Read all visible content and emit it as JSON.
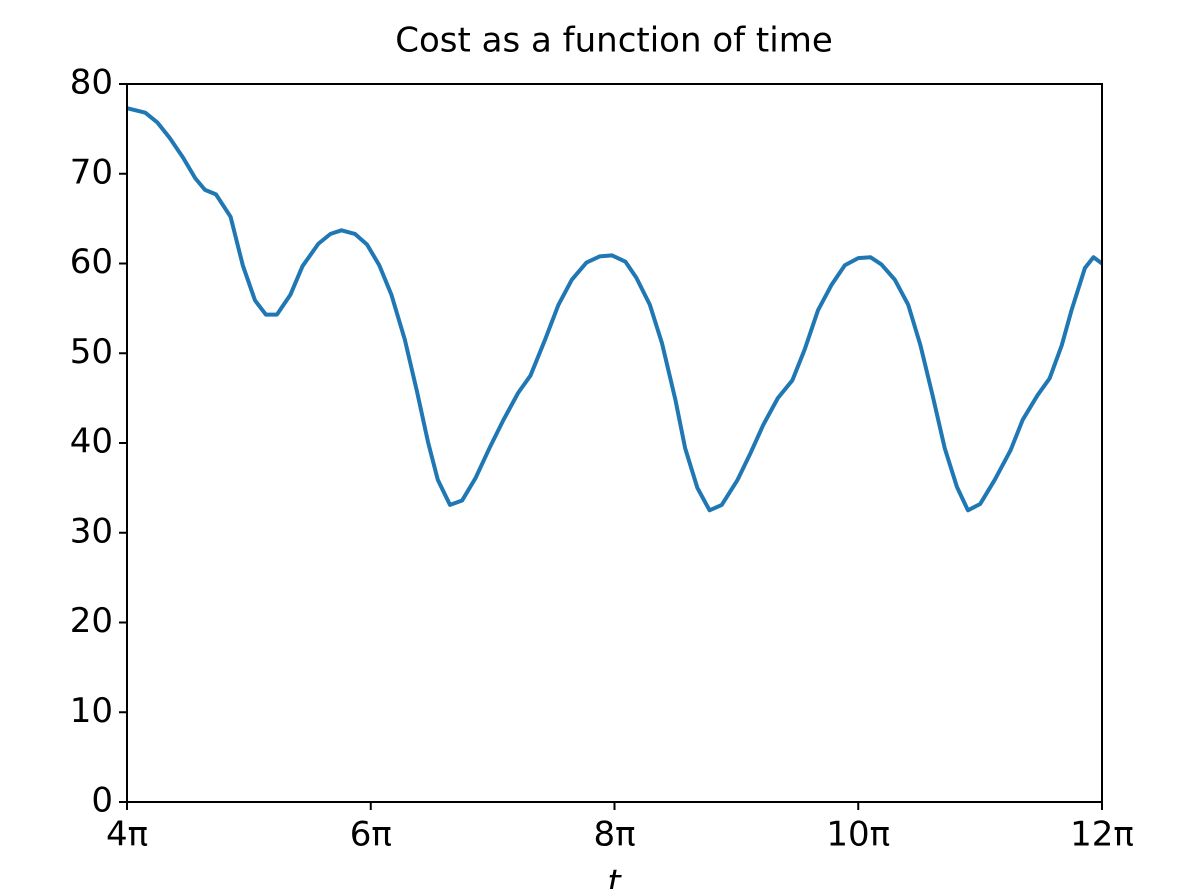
{
  "chart_data": {
    "type": "line",
    "title": "Cost as a function of time",
    "xlabel": "t",
    "x": [
      4.0,
      4.15,
      4.25,
      4.35,
      4.46,
      4.56,
      4.64,
      4.73,
      4.85,
      4.95,
      5.05,
      5.14,
      5.23,
      5.34,
      5.44,
      5.57,
      5.67,
      5.76,
      5.87,
      5.97,
      6.07,
      6.17,
      6.28,
      6.38,
      6.47,
      6.55,
      6.65,
      6.75,
      6.86,
      6.98,
      7.09,
      7.21,
      7.31,
      7.43,
      7.54,
      7.65,
      7.77,
      7.88,
      7.98,
      8.09,
      8.18,
      8.29,
      8.39,
      8.5,
      8.58,
      8.68,
      8.78,
      8.88,
      9.01,
      9.11,
      9.22,
      9.34,
      9.46,
      9.56,
      9.67,
      9.78,
      9.89,
      10.0,
      10.1,
      10.19,
      10.3,
      10.41,
      10.51,
      10.61,
      10.71,
      10.81,
      10.9,
      11.0,
      11.12,
      11.25,
      11.35,
      11.47,
      11.57,
      11.67,
      11.75,
      11.86,
      11.93,
      12.0
    ],
    "series": [
      {
        "color": "#1f77b4",
        "values": [
          77.3,
          76.8,
          75.7,
          74.0,
          71.8,
          69.5,
          68.2,
          67.7,
          65.2,
          59.8,
          55.9,
          54.3,
          54.3,
          56.5,
          59.7,
          62.2,
          63.3,
          63.7,
          63.3,
          62.1,
          59.8,
          56.5,
          51.5,
          45.7,
          40.1,
          35.9,
          33.1,
          33.6,
          36.1,
          39.6,
          42.6,
          45.6,
          47.5,
          51.5,
          55.4,
          58.2,
          60.1,
          60.8,
          60.9,
          60.2,
          58.4,
          55.4,
          51.1,
          44.8,
          39.4,
          35.0,
          32.5,
          33.1,
          35.9,
          38.7,
          42.0,
          45.0,
          47.0,
          50.4,
          54.8,
          57.6,
          59.8,
          60.6,
          60.7,
          59.9,
          58.2,
          55.4,
          50.9,
          45.3,
          39.4,
          35.1,
          32.5,
          33.2,
          35.9,
          39.2,
          42.6,
          45.3,
          47.2,
          50.9,
          54.8,
          59.5,
          60.7,
          60.0
        ]
      }
    ],
    "xlim": [
      4,
      12
    ],
    "xticks": [
      {
        "value": 4,
        "label": "4π"
      },
      {
        "value": 6,
        "label": "6π"
      },
      {
        "value": 8,
        "label": "8π"
      },
      {
        "value": 10,
        "label": "10π"
      },
      {
        "value": 12,
        "label": "12π"
      }
    ],
    "ylim": [
      0,
      80
    ],
    "yticks": [
      0,
      10,
      20,
      30,
      40,
      50,
      60,
      70,
      80
    ]
  }
}
